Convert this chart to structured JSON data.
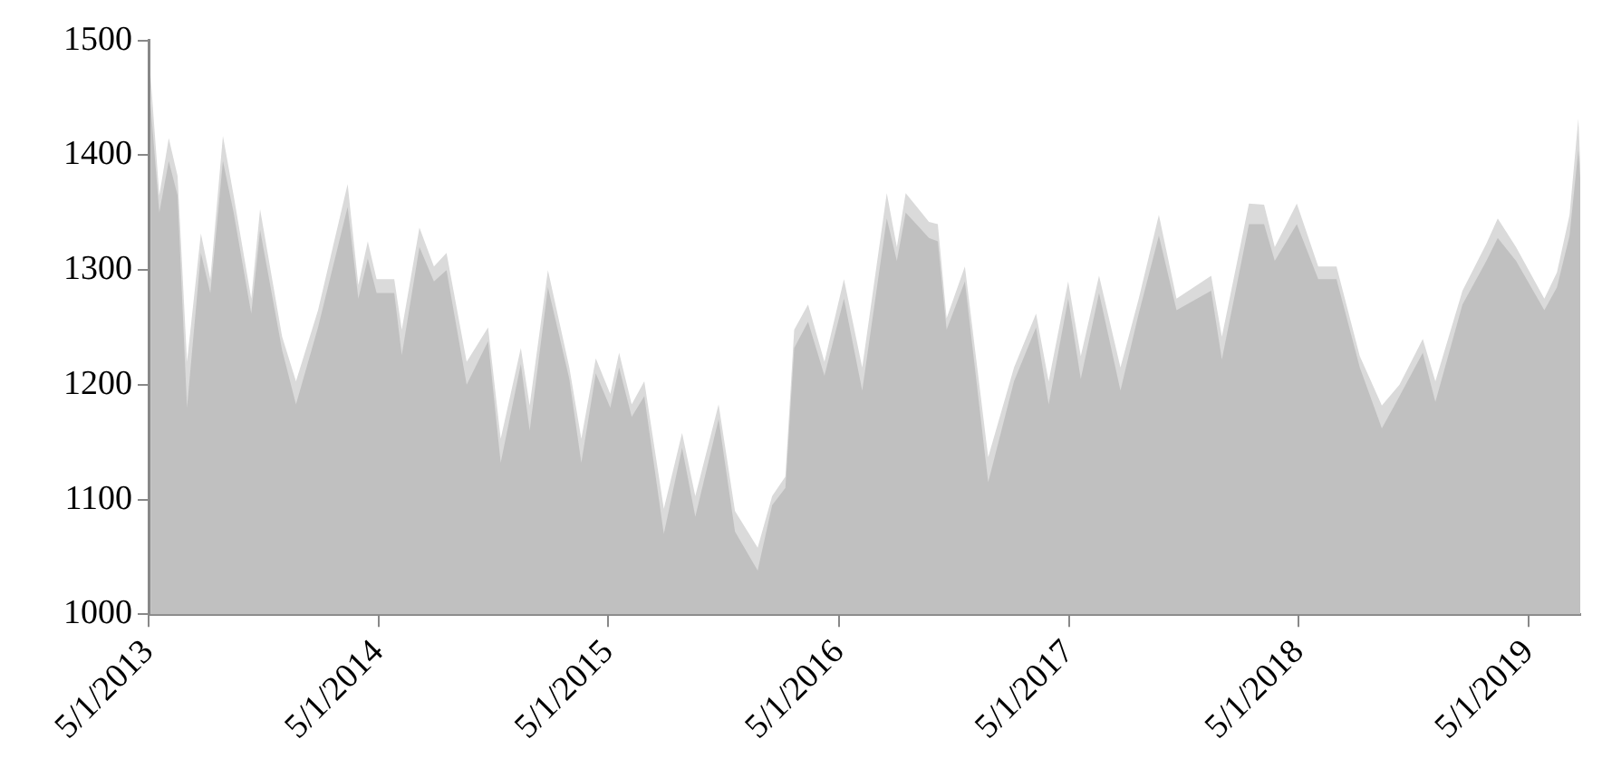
{
  "chart_data": {
    "type": "area",
    "x": [
      "2013-05-04",
      "2013-05-18",
      "2013-06-02",
      "2013-06-16",
      "2013-07-01",
      "2013-07-23",
      "2013-08-07",
      "2013-08-27",
      "2013-09-13",
      "2013-10-11",
      "2013-10-25",
      "2013-11-29",
      "2013-12-21",
      "2014-01-25",
      "2014-03-13",
      "2014-03-30",
      "2014-04-14",
      "2014-04-28",
      "2014-05-26",
      "2014-06-07",
      "2014-07-05",
      "2014-07-28",
      "2014-08-17",
      "2014-09-18",
      "2014-10-22",
      "2014-11-11",
      "2014-12-13",
      "2014-12-27",
      "2015-01-25",
      "2015-02-28",
      "2015-03-19",
      "2015-04-11",
      "2015-05-04",
      "2015-05-18",
      "2015-06-07",
      "2015-06-27",
      "2015-07-28",
      "2015-08-26",
      "2015-09-16",
      "2015-10-23",
      "2015-11-18",
      "2015-12-24",
      "2016-01-16",
      "2016-02-06",
      "2016-02-20",
      "2016-03-13",
      "2016-04-08",
      "2016-05-09",
      "2016-06-07",
      "2016-07-16",
      "2016-08-01",
      "2016-08-15",
      "2016-09-21",
      "2016-10-05",
      "2016-10-19",
      "2016-11-17",
      "2016-12-24",
      "2017-02-03",
      "2017-03-10",
      "2017-03-30",
      "2017-04-30",
      "2017-05-20",
      "2017-06-18",
      "2017-07-22",
      "2017-08-20",
      "2017-09-21",
      "2017-10-19",
      "2017-12-13",
      "2017-12-30",
      "2018-02-11",
      "2018-03-07",
      "2018-03-24",
      "2018-04-28",
      "2018-06-01",
      "2018-06-30",
      "2018-08-06",
      "2018-09-10",
      "2018-10-08",
      "2018-11-14",
      "2018-12-04",
      "2019-01-16",
      "2019-02-23",
      "2019-03-13",
      "2019-04-11",
      "2019-05-26",
      "2019-06-15",
      "2019-07-05",
      "2019-07-19",
      "2019-07-22"
    ],
    "series": [
      {
        "color": "#dadada",
        "values": [
          1470,
          1365,
          1415,
          1382,
          1220,
          1332,
          1292,
          1417,
          1365,
          1275,
          1353,
          1242,
          1203,
          1265,
          1375,
          1287,
          1325,
          1292,
          1292,
          1248,
          1337,
          1303,
          1315,
          1220,
          1250,
          1153,
          1232,
          1182,
          1300,
          1215,
          1153,
          1223,
          1192,
          1228,
          1183,
          1203,
          1092,
          1158,
          1103,
          1183,
          1090,
          1058,
          1103,
          1120,
          1248,
          1270,
          1220,
          1292,
          1215,
          1367,
          1320,
          1367,
          1342,
          1340,
          1258,
          1303,
          1137,
          1215,
          1262,
          1203,
          1290,
          1225,
          1295,
          1215,
          1275,
          1348,
          1275,
          1295,
          1242,
          1358,
          1357,
          1320,
          1358,
          1303,
          1303,
          1225,
          1182,
          1200,
          1240,
          1203,
          1282,
          1323,
          1345,
          1320,
          1275,
          1298,
          1348,
          1432,
          1392
        ]
      },
      {
        "color": "#c0c0c0",
        "values": [
          1445,
          1350,
          1395,
          1365,
          1180,
          1315,
          1280,
          1395,
          1350,
          1262,
          1335,
          1230,
          1183,
          1250,
          1355,
          1275,
          1310,
          1280,
          1280,
          1226,
          1320,
          1290,
          1300,
          1200,
          1238,
          1132,
          1218,
          1160,
          1285,
          1205,
          1132,
          1210,
          1180,
          1215,
          1172,
          1190,
          1070,
          1145,
          1085,
          1170,
          1072,
          1038,
          1095,
          1110,
          1232,
          1255,
          1208,
          1275,
          1195,
          1345,
          1308,
          1350,
          1328,
          1325,
          1248,
          1290,
          1115,
          1203,
          1250,
          1183,
          1275,
          1205,
          1280,
          1195,
          1262,
          1330,
          1265,
          1282,
          1222,
          1340,
          1340,
          1308,
          1340,
          1292,
          1292,
          1215,
          1162,
          1190,
          1228,
          1185,
          1270,
          1308,
          1328,
          1308,
          1265,
          1285,
          1330,
          1405,
          1380
        ]
      }
    ],
    "xlim": [
      "2013-05-01",
      "2019-07-22"
    ],
    "xticks": [
      {
        "value": "2013-05-01",
        "label": "5/1/2013"
      },
      {
        "value": "2014-05-01",
        "label": "5/1/2014"
      },
      {
        "value": "2015-05-01",
        "label": "5/1/2015"
      },
      {
        "value": "2016-05-01",
        "label": "5/1/2016"
      },
      {
        "value": "2017-05-01",
        "label": "5/1/2017"
      },
      {
        "value": "2018-05-01",
        "label": "5/1/2018"
      },
      {
        "value": "2019-05-01",
        "label": "5/1/2019"
      }
    ],
    "ylim": [
      1000,
      1500
    ],
    "yticks": [
      1000,
      1100,
      1200,
      1300,
      1400,
      1500
    ],
    "grid": false,
    "legend": false
  }
}
